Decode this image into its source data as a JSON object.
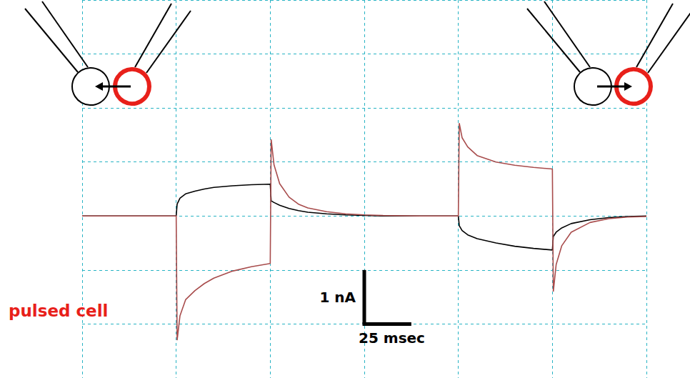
{
  "chart_data": {
    "type": "line",
    "x": [
      0,
      50,
      50.5,
      52,
      55,
      60,
      65,
      70,
      80,
      90,
      100,
      100.5,
      102,
      105,
      110,
      115,
      120,
      130,
      140,
      150,
      160,
      180,
      200,
      200.5,
      202,
      205,
      210,
      220,
      230,
      240,
      250,
      250.5,
      252,
      255,
      260,
      270,
      280,
      290,
      300
    ],
    "series": [
      {
        "color": "#000000",
        "values": [
          0,
          0,
          0.22,
          0.33,
          0.41,
          0.46,
          0.5,
          0.53,
          0.56,
          0.58,
          0.59,
          0.28,
          0.25,
          0.2,
          0.14,
          0.1,
          0.07,
          0.04,
          0.02,
          0.01,
          0,
          0,
          0,
          -0.18,
          -0.27,
          -0.35,
          -0.42,
          -0.5,
          -0.56,
          -0.6,
          -0.63,
          -0.38,
          -0.3,
          -0.22,
          -0.14,
          -0.07,
          -0.03,
          -0.01,
          0
        ]
      },
      {
        "color": "#a84c4c",
        "values": [
          0,
          0,
          -2.3,
          -1.85,
          -1.55,
          -1.38,
          -1.25,
          -1.15,
          -1.02,
          -0.94,
          -0.88,
          1.42,
          0.95,
          0.6,
          0.35,
          0.22,
          0.15,
          0.08,
          0.04,
          0.02,
          0.01,
          0,
          0,
          1.72,
          1.45,
          1.28,
          1.12,
          1.0,
          0.94,
          0.9,
          0.87,
          -1.4,
          -0.9,
          -0.55,
          -0.3,
          -0.12,
          -0.05,
          -0.02,
          -0.01
        ]
      }
    ],
    "xlim": [
      0,
      300
    ],
    "xticks": [
      0,
      50,
      100,
      150,
      200,
      250,
      300
    ],
    "ylim": [
      -3,
      4
    ],
    "yticks": [
      -3,
      -2,
      -1,
      0,
      1,
      2,
      3,
      4
    ],
    "grid": true,
    "tick_labels": false,
    "annotations": [
      {
        "text": "pulsed cell",
        "color": "#e8201a"
      }
    ],
    "scale_bar": {
      "y": {
        "value": 1,
        "label": "1 nA"
      },
      "x": {
        "value": 25,
        "label": "25 msec"
      }
    }
  }
}
